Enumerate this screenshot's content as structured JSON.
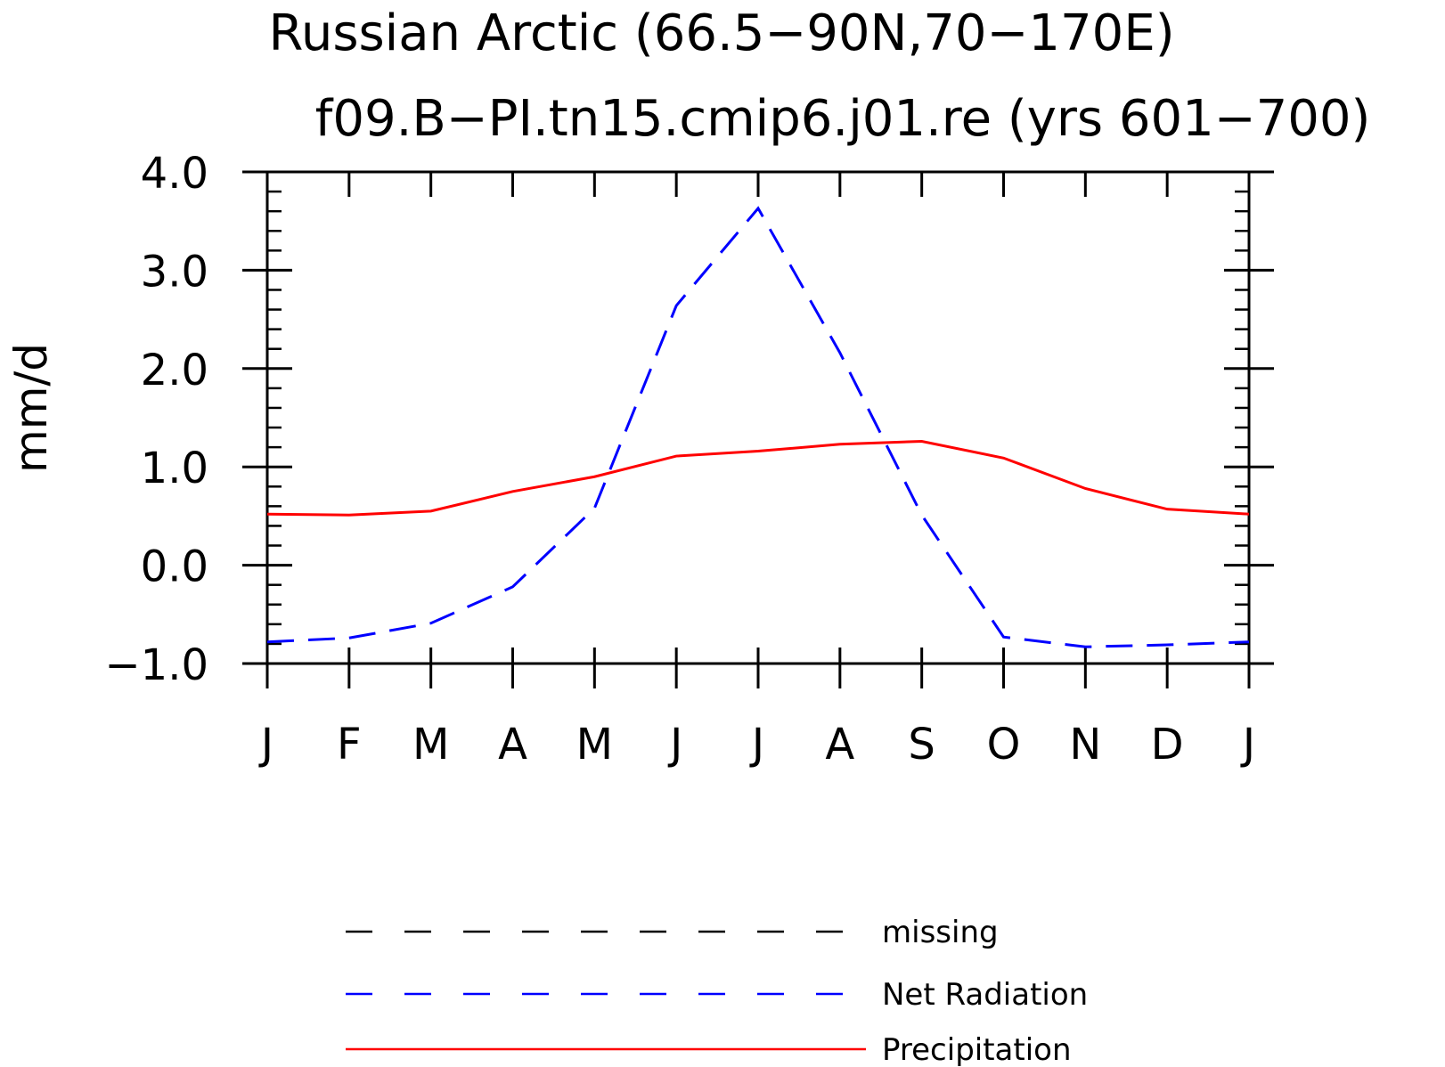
{
  "chart_data": {
    "type": "line",
    "title": "Russian Arctic (66.5−90N,70−170E)",
    "subtitle": "f09.B−PI.tn15.cmip6.j01.re (yrs 601−700)",
    "xlabel": "",
    "ylabel": "mm/d",
    "categories": [
      "J",
      "F",
      "M",
      "A",
      "M",
      "J",
      "J",
      "A",
      "S",
      "O",
      "N",
      "D",
      "J"
    ],
    "ylim": [
      -1.0,
      4.0
    ],
    "yticks": [
      -1.0,
      0.0,
      1.0,
      2.0,
      3.0,
      4.0
    ],
    "ytick_labels": [
      "−1.0",
      "0.0",
      "1.0",
      "2.0",
      "3.0",
      "4.0"
    ],
    "grid": false,
    "legend_position": "bottom",
    "series": [
      {
        "name": "Net Radiation",
        "color": "#0000ff",
        "dash": "dashed",
        "values": [
          -0.78,
          -0.74,
          -0.59,
          -0.22,
          0.58,
          2.64,
          3.63,
          2.16,
          0.51,
          -0.73,
          -0.83,
          -0.81,
          -0.78
        ]
      },
      {
        "name": "Precipitation",
        "color": "#ff0000",
        "dash": "solid",
        "values": [
          0.52,
          0.51,
          0.55,
          0.75,
          0.9,
          1.11,
          1.16,
          1.23,
          1.26,
          1.09,
          0.78,
          0.57,
          0.52
        ]
      }
    ],
    "legend": [
      {
        "label": "missing",
        "color": "#000000",
        "dash": "dashed"
      },
      {
        "label": "Net Radiation",
        "color": "#0000ff",
        "dash": "dashed"
      },
      {
        "label": "Precipitation",
        "color": "#ff0000",
        "dash": "solid"
      }
    ]
  }
}
